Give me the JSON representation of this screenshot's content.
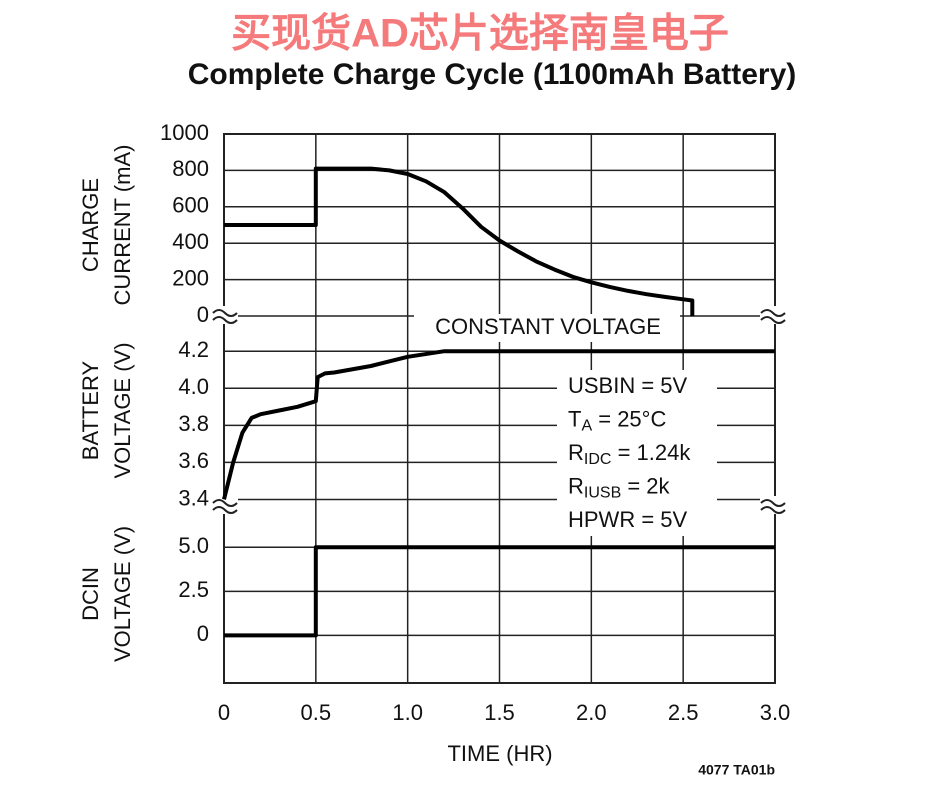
{
  "header": {
    "watermark": "买现货AD芯片选择南皇电子",
    "title": "Complete Charge Cycle (1100mAh Battery)",
    "footer": "4077 TA01b"
  },
  "chart_data": [
    {
      "type": "line",
      "ylabel": [
        "CHARGE",
        "CURRENT (mA)"
      ],
      "xlim": [
        0,
        3
      ],
      "ylim": [
        0,
        1000
      ],
      "yticks": [
        1000,
        800,
        600,
        400,
        200,
        0
      ],
      "x": [
        0,
        0.5,
        0.5,
        0.8,
        0.9,
        1.0,
        1.1,
        1.2,
        1.3,
        1.4,
        1.5,
        1.6,
        1.7,
        1.8,
        1.9,
        2.0,
        2.1,
        2.2,
        2.3,
        2.4,
        2.5,
        2.55,
        2.55
      ],
      "series": [
        {
          "color": "#000000",
          "values": [
            500,
            500,
            810,
            810,
            800,
            780,
            740,
            680,
            590,
            490,
            415,
            355,
            300,
            255,
            215,
            185,
            160,
            138,
            120,
            105,
            92,
            85,
            0
          ]
        }
      ]
    },
    {
      "type": "line",
      "ylabel": [
        "BATTERY",
        "VOLTAGE (V)"
      ],
      "xlim": [
        0,
        3
      ],
      "ylim": [
        3.37,
        4.39
      ],
      "yticks": [
        4.2,
        {
          "value": 4,
          "label": "4.0"
        },
        3.8,
        3.6,
        3.4
      ],
      "annotations": [
        "CONSTANT VOLTAGE"
      ],
      "conditions": [
        [
          "USBIN = 5V"
        ],
        [
          "T",
          "A",
          " = 25°C"
        ],
        [
          "R",
          "IDC",
          " = 1.24k"
        ],
        [
          "R",
          "IUSB",
          " = 2k"
        ],
        [
          "HPWR = 5V"
        ]
      ],
      "x": [
        0,
        0.05,
        0.1,
        0.15,
        0.2,
        0.3,
        0.4,
        0.5,
        0.51,
        0.55,
        0.6,
        0.8,
        1.0,
        1.2,
        3.0
      ],
      "series": [
        {
          "color": "#000000",
          "values": [
            3.4,
            3.6,
            3.76,
            3.84,
            3.86,
            3.88,
            3.9,
            3.93,
            4.06,
            4.08,
            4.085,
            4.12,
            4.17,
            4.2,
            4.2
          ]
        }
      ]
    },
    {
      "type": "line",
      "ylabel": [
        "DCIN",
        "VOLTAGE (V)"
      ],
      "xlabel": "TIME (HR)",
      "xlim": [
        0,
        3
      ],
      "ylim": [
        -2.7,
        7.4
      ],
      "yticks": [
        {
          "value": 5,
          "label": "5.0"
        },
        2.5,
        0
      ],
      "xticks": [
        0,
        0.5,
        {
          "value": 1,
          "label": "1.0"
        },
        1.5,
        {
          "value": 2,
          "label": "2.0"
        },
        2.5,
        {
          "value": 3,
          "label": "3.0"
        }
      ],
      "x": [
        0,
        0.5,
        0.5,
        3.0
      ],
      "series": [
        {
          "color": "#000000",
          "values": [
            0,
            0,
            5,
            5
          ]
        }
      ]
    }
  ]
}
